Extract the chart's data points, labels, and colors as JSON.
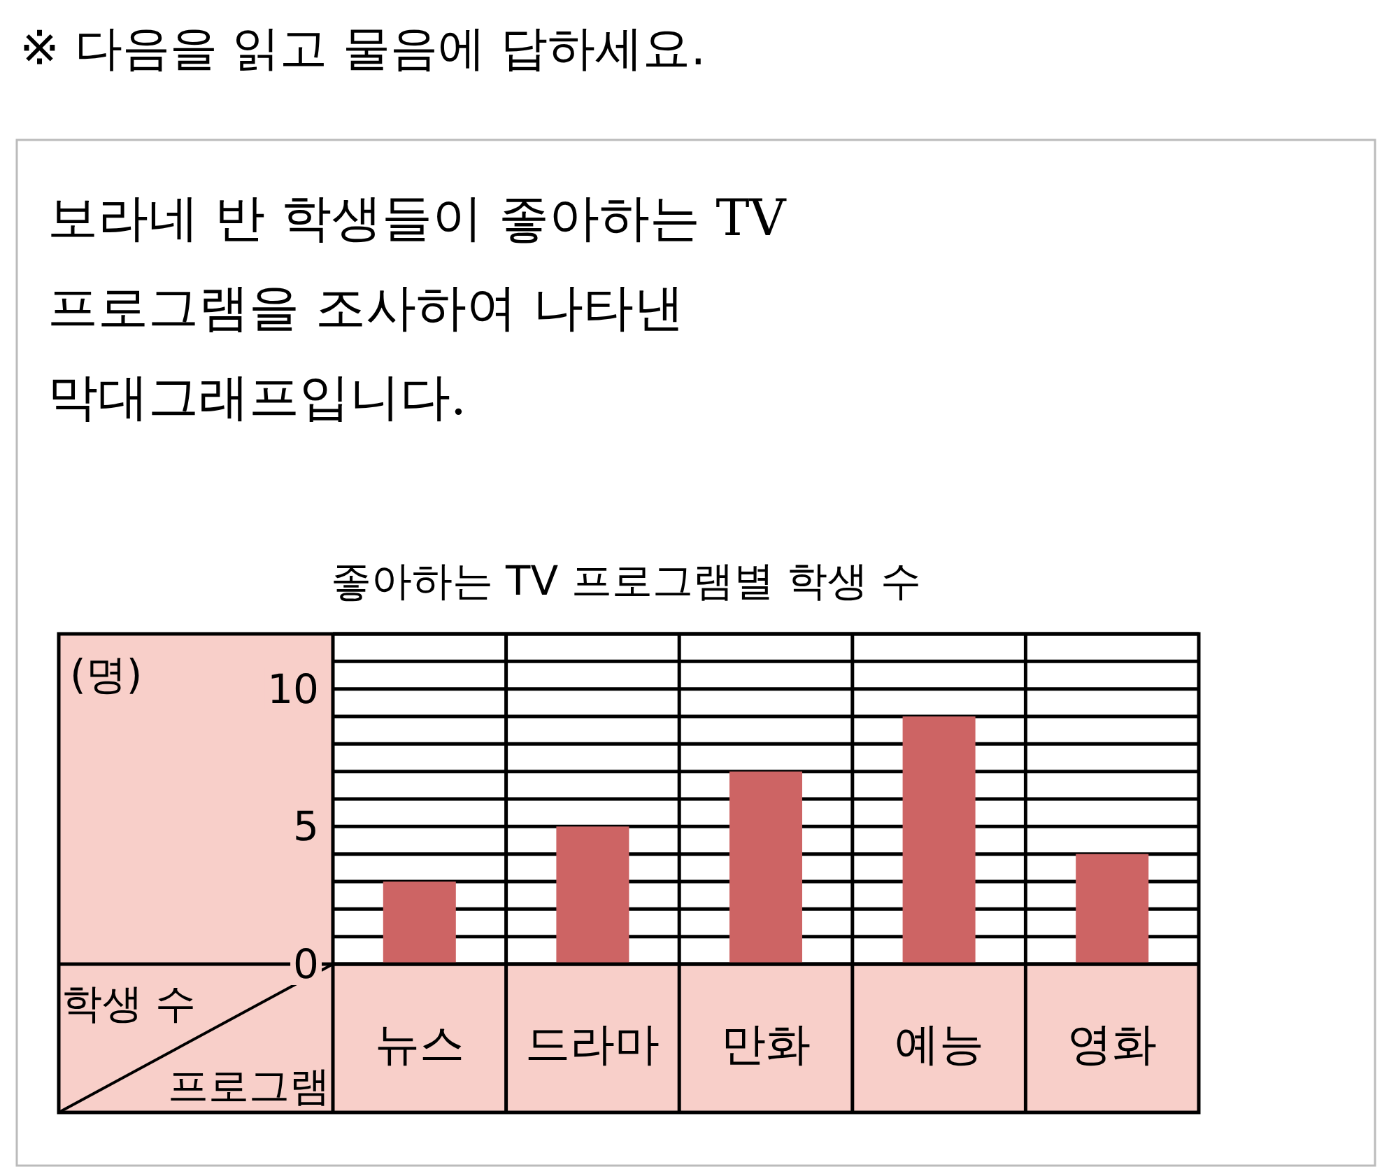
{
  "chart_data": {
    "type": "bar",
    "title": "좋아하는 TV 프로그램별 학생 수",
    "annotations": [
      "※ 다음을 읽고 물음에 답하세요.",
      "보라네 반 학생들이 좋아하는 TV 프로그램을 조사하여 나타낸 막대그래프입니다.",
      "(명)"
    ],
    "ylabel": "학생 수",
    "xlabel": "프로그램",
    "categories": [
      "뉴스",
      "드라마",
      "만화",
      "예능",
      "영화"
    ],
    "values": [
      3,
      5,
      7,
      9,
      4
    ],
    "color": "#cd6464",
    "ylim": [
      0,
      12
    ],
    "yticks": [
      0,
      {
        "value": 1,
        "label": null
      },
      {
        "value": 2,
        "label": null
      },
      {
        "value": 3,
        "label": null
      },
      {
        "value": 4,
        "label": null
      },
      5,
      {
        "value": 6,
        "label": null
      },
      {
        "value": 7,
        "label": null
      },
      {
        "value": 8,
        "label": null
      },
      {
        "value": 9,
        "label": null
      },
      10,
      {
        "value": 11,
        "label": null
      },
      {
        "value": 12,
        "label": null
      }
    ],
    "grid": "y"
  }
}
